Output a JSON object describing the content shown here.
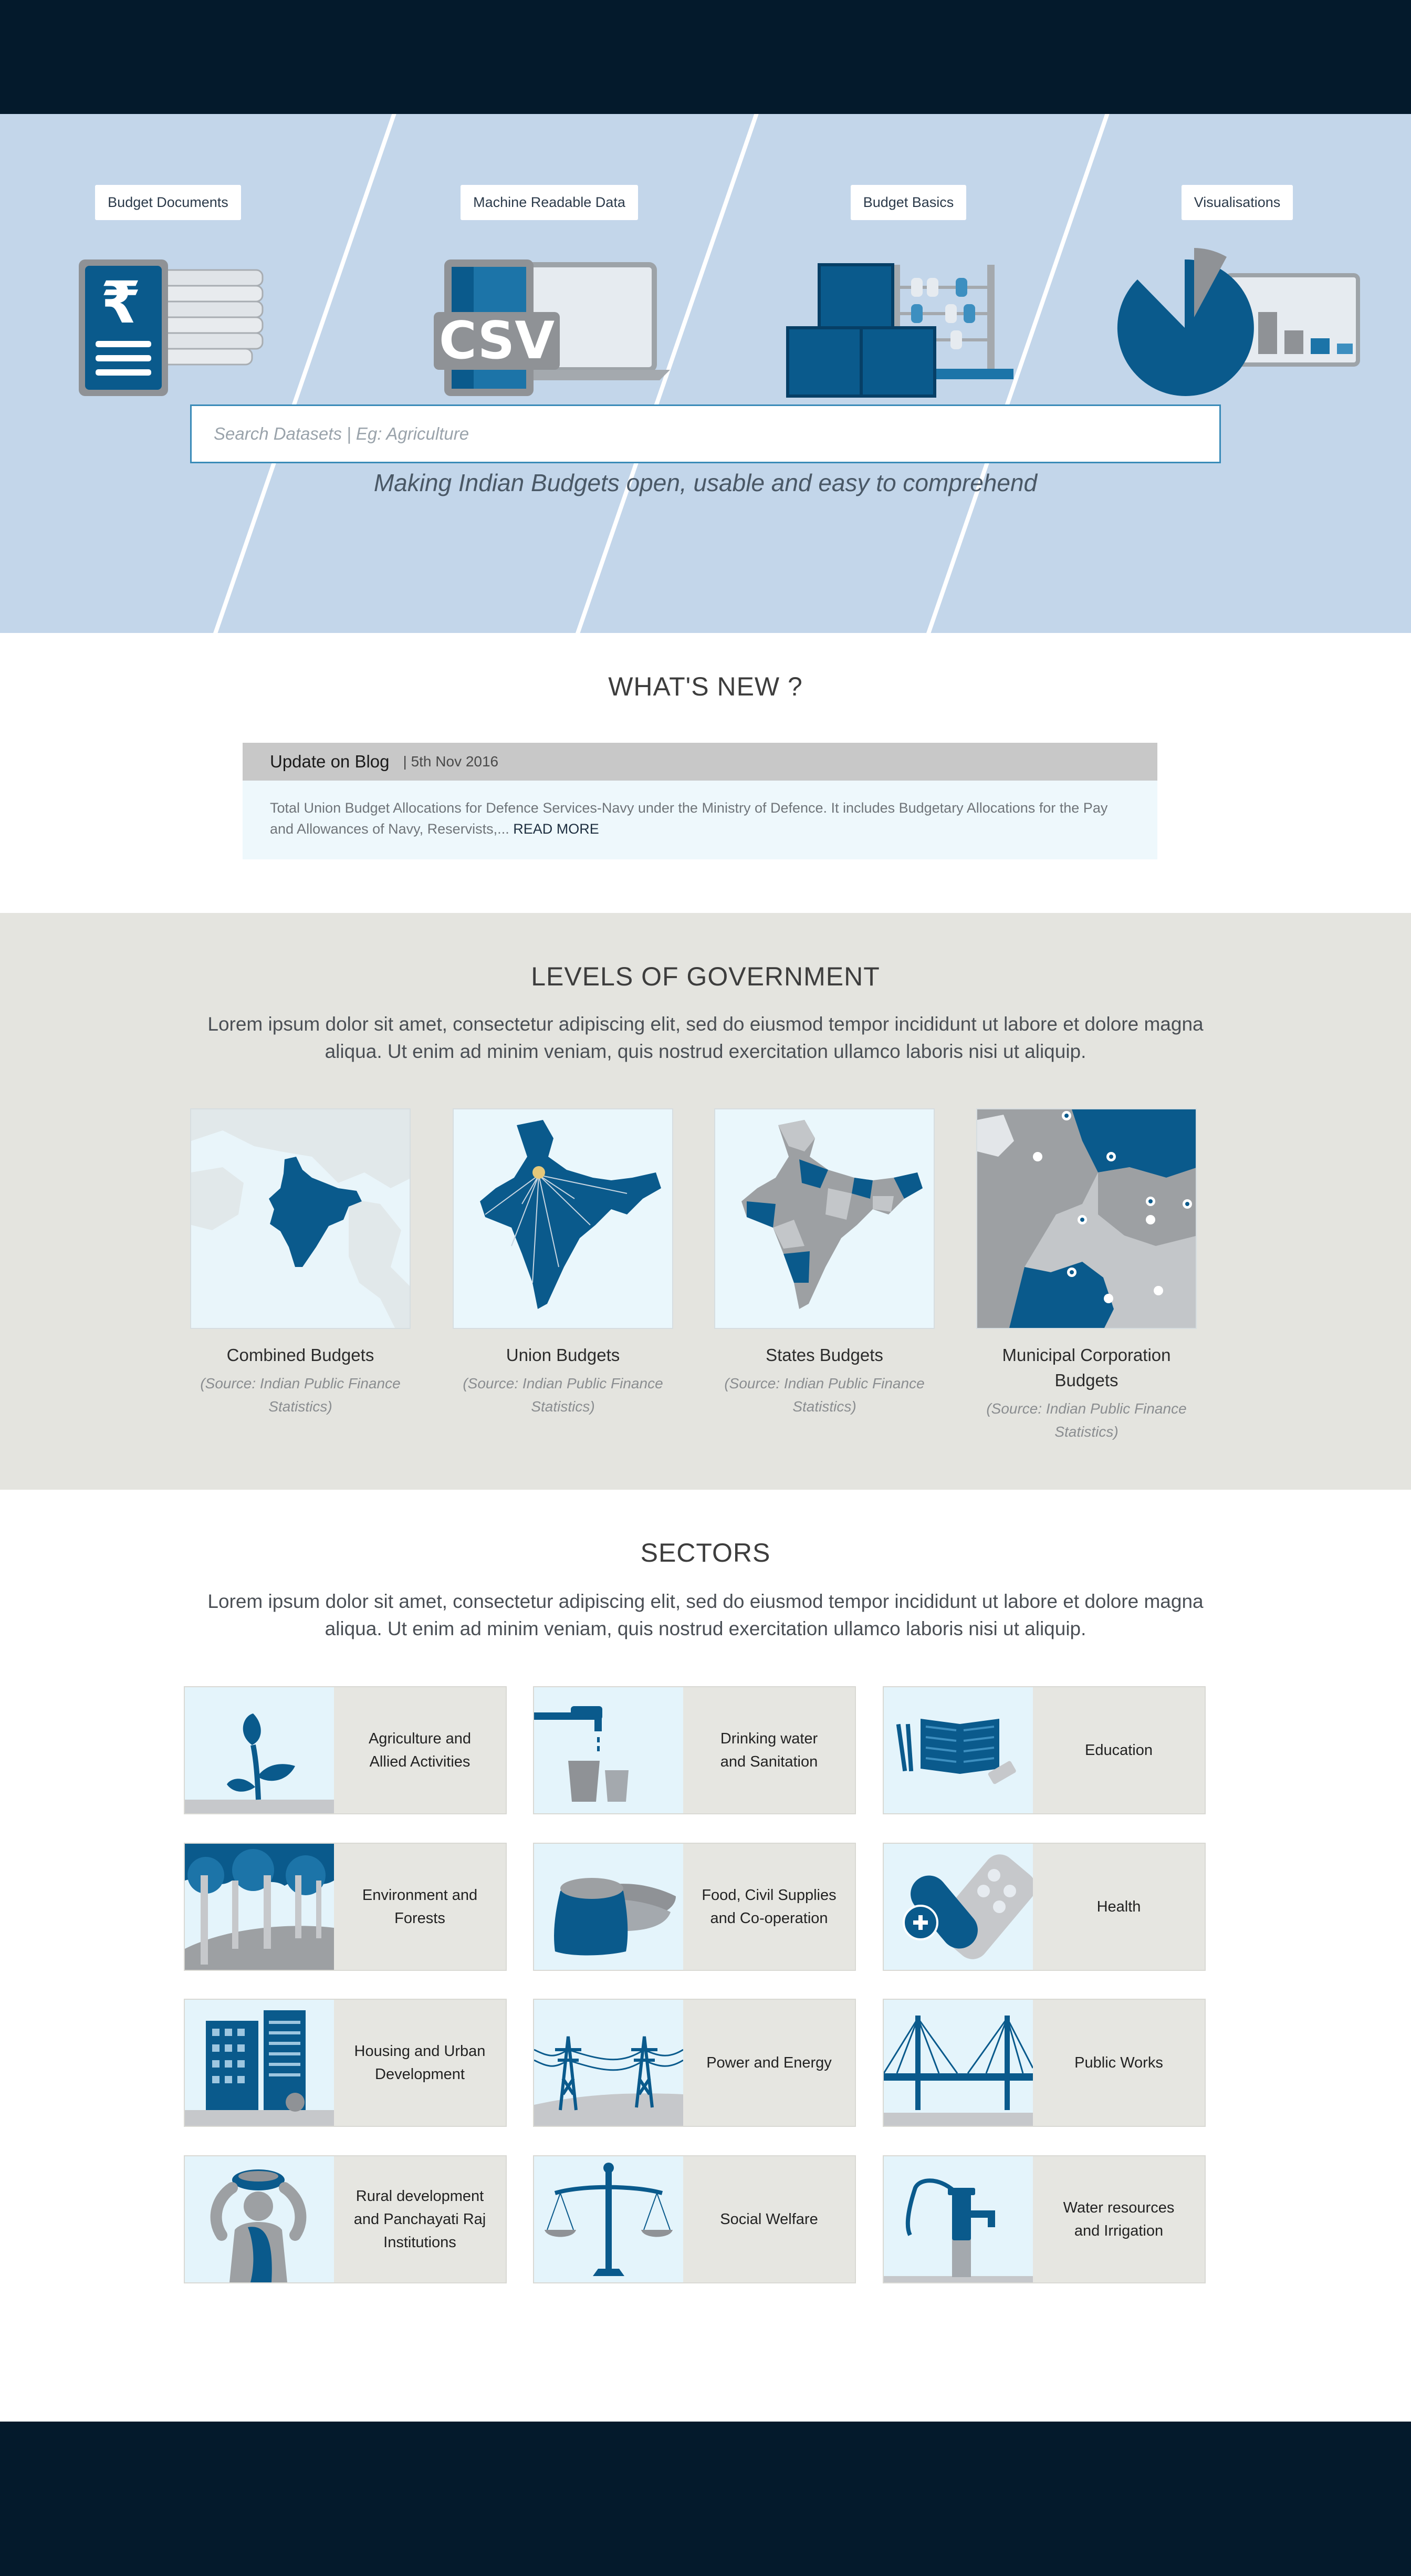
{
  "hero": {
    "tiles": [
      {
        "label": "Budget Documents",
        "icon": "budget-document-icon"
      },
      {
        "label": "Machine Readable Data",
        "icon": "csv-icon",
        "csv_text": "CSV"
      },
      {
        "label": "Budget Basics",
        "icon": "abacus-blocks-icon"
      },
      {
        "label": "Visualisations",
        "icon": "pie-chart-icon"
      }
    ],
    "tagline": "Making Indian Budgets open, usable and easy to comprehend",
    "search_placeholder": "Search Datasets | Eg: Agriculture",
    "rupee": "₹"
  },
  "whats_new": {
    "title": "WHAT'S NEW ?",
    "item_title": "Update on Blog",
    "item_date": "| 5th Nov 2016",
    "item_text": "Total Union Budget Allocations for Defence Services-Navy under the Ministry of Defence. It includes Budgetary Allocations for the Pay and Allowances of Navy, Reservists,...",
    "read_more": "READ MORE"
  },
  "levels": {
    "title": "LEVELS OF GOVERNMENT",
    "description": "Lorem ipsum dolor sit amet, consectetur adipiscing elit, sed do eiusmod tempor incididunt ut labore et dolore magna aliqua. Ut enim ad minim veniam, quis nostrud exercitation ullamco laboris nisi ut aliquip.",
    "items": [
      {
        "name": "Combined Budgets",
        "source": "(Source: Indian Public Finance Statistics)"
      },
      {
        "name": "Union Budgets",
        "source": "(Source: Indian Public Finance Statistics)"
      },
      {
        "name": "States Budgets",
        "source": "(Source: Indian Public Finance Statistics)"
      },
      {
        "name": "Municipal Corporation Budgets",
        "source": "(Source: Indian Public Finance Statistics)"
      }
    ]
  },
  "sectors": {
    "title": "SECTORS",
    "description": "Lorem ipsum dolor sit amet, consectetur adipiscing elit, sed do eiusmod tempor incididunt ut labore et dolore magna aliqua. Ut enim ad minim veniam, quis nostrud exercitation ullamco laboris nisi ut aliquip.",
    "items": [
      {
        "label": "Agriculture and\nAllied Activities",
        "icon": "plant-icon"
      },
      {
        "label": "Drinking water\nand Sanitation",
        "icon": "water-tap-icon"
      },
      {
        "label": "Education",
        "icon": "book-icon"
      },
      {
        "label": "Environment and\nForests",
        "icon": "forest-icon"
      },
      {
        "label": "Food, Civil Supplies\nand Co-operation",
        "icon": "grain-sack-icon"
      },
      {
        "label": "Health",
        "icon": "pill-icon"
      },
      {
        "label": "Housing and Urban\nDevelopment",
        "icon": "buildings-icon"
      },
      {
        "label": "Power and Energy",
        "icon": "power-tower-icon"
      },
      {
        "label": "Public Works",
        "icon": "bridge-icon"
      },
      {
        "label": "Rural development\nand Panchayati Raj\nInstitutions",
        "icon": "rural-woman-icon"
      },
      {
        "label": "Social Welfare",
        "icon": "scales-icon"
      },
      {
        "label": "Water resources\nand Irrigation",
        "icon": "hand-pump-icon"
      }
    ]
  },
  "colors": {
    "dark_navy": "#041a2c",
    "hero_bg": "#c3d6ea",
    "accent_blue": "#0a5a8c",
    "grey_band": "#e4e4df"
  }
}
